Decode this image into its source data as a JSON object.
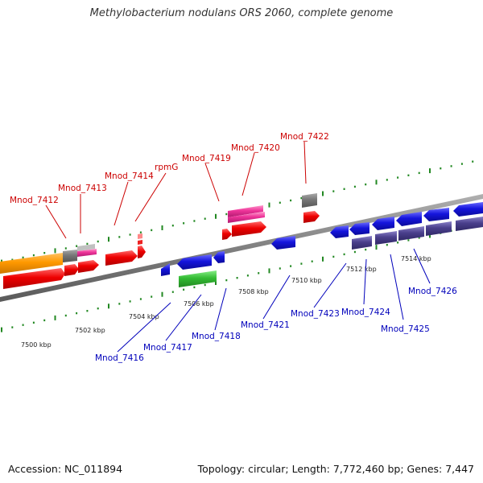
{
  "title": "Methylobacterium nodulans ORS 2060, complete genome",
  "footer": {
    "accession": "Accession: NC_011894",
    "info": "Topology: circular; Length: 7,772,460 bp; Genes: 7,447"
  },
  "scale_labels": [
    "7500 kbp",
    "7502 kbp",
    "7504 kbp",
    "7506 kbp",
    "7508 kbp",
    "7510 kbp",
    "7512 kbp",
    "7514 kbp"
  ],
  "top_labels": [
    "Mnod_7412",
    "Mnod_7413",
    "Mnod_7414",
    "rpmG",
    "Mnod_7419",
    "Mnod_7420",
    "Mnod_7422"
  ],
  "bottom_labels": [
    "Mnod_7416",
    "Mnod_7417",
    "Mnod_7418",
    "Mnod_7421",
    "Mnod_7423",
    "Mnod_7424",
    "Mnod_7425",
    "Mnod_7426"
  ],
  "colors": {
    "cds_forward": "#ee0000",
    "cds_reverse": "#1010dd",
    "rna": "#ee3399",
    "orange_feature": "#ff9900",
    "gray_feature": "#777777",
    "purple_feature": "#4a3f8c",
    "green_feature": "#33bb33",
    "backbone": "#808080",
    "tick": "#228822",
    "top_label": "#cc0000",
    "bottom_label": "#0000bb"
  }
}
